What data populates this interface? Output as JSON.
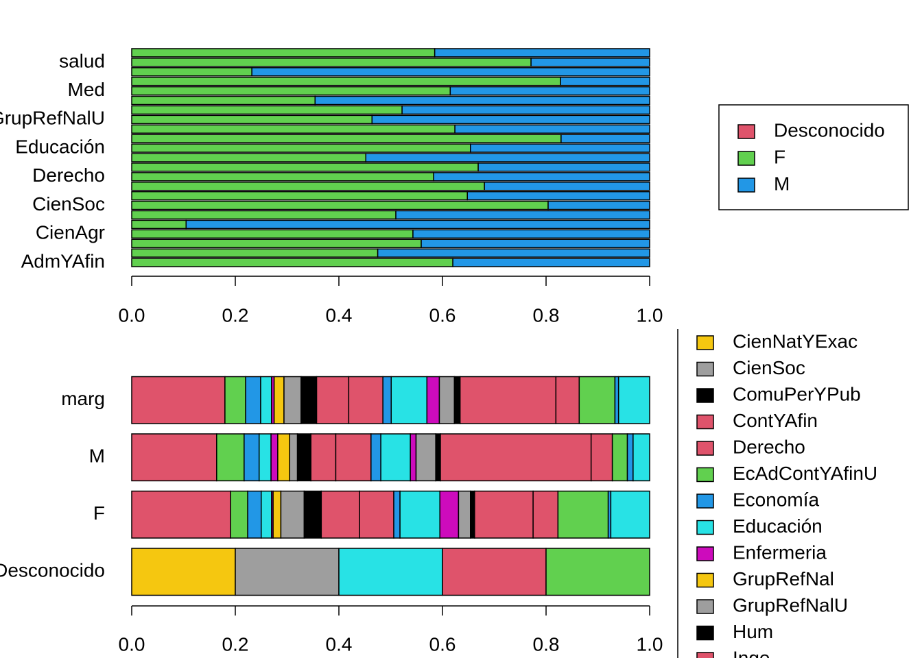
{
  "chart_data": [
    {
      "type": "bar",
      "orientation": "horizontal",
      "stacked": true,
      "legend": "right",
      "categories": [
        "AdmYAfin",
        null,
        null,
        "CienAgr",
        null,
        null,
        "CienSoc",
        null,
        null,
        "Derecho",
        null,
        null,
        "Educación",
        null,
        null,
        "GrupRefNalU",
        null,
        null,
        "Med",
        null,
        null,
        "salud",
        null
      ],
      "series": [
        {
          "name": "Desconocido",
          "color": "#DF536B",
          "values": [
            0,
            0,
            0,
            0,
            0,
            0,
            0,
            0,
            0,
            0,
            0,
            0,
            0,
            0,
            0,
            0,
            0,
            0,
            0,
            0,
            0,
            0,
            0
          ]
        },
        {
          "name": "F",
          "color": "#61D04F",
          "values": [
            0.62,
            0.475,
            0.559,
            0.543,
            0.105,
            0.51,
            0.804,
            0.648,
            0.681,
            0.583,
            0.669,
            0.452,
            0.654,
            0.829,
            0.624,
            0.464,
            0.522,
            0.354,
            0.615,
            0.828,
            0.232,
            0.771,
            0.585
          ]
        },
        {
          "name": "M",
          "color": "#2297E6",
          "values": [
            0.38,
            0.525,
            0.441,
            0.457,
            0.895,
            0.49,
            0.196,
            0.352,
            0.319,
            0.417,
            0.331,
            0.548,
            0.346,
            0.171,
            0.376,
            0.536,
            0.478,
            0.646,
            0.385,
            0.172,
            0.768,
            0.229,
            0.415
          ]
        }
      ],
      "xlim": [
        0,
        1
      ],
      "xticks": [
        {
          "value": 0,
          "label": "0.0"
        },
        0.2,
        0.4,
        0.6,
        0.8,
        {
          "value": 1,
          "label": "1.0"
        }
      ]
    },
    {
      "type": "bar",
      "orientation": "horizontal",
      "stacked": true,
      "legend": "right",
      "categories": [
        "Desconocido",
        "F",
        "M",
        "marg"
      ],
      "series": [
        {
          "name": null,
          "color": "#DF536B",
          "values": [
            0,
            0.191,
            0.164,
            0.18
          ]
        },
        {
          "name": null,
          "color": "#61D04F",
          "values": [
            0,
            0.033,
            0.053,
            0.04
          ]
        },
        {
          "name": null,
          "color": "#2297E6",
          "values": [
            0,
            0.026,
            0.029,
            0.029
          ]
        },
        {
          "name": null,
          "color": "#28E2E5",
          "values": [
            0,
            0.02,
            0.023,
            0.021
          ]
        },
        {
          "name": null,
          "color": "#CD0BBC",
          "values": [
            0,
            0.003,
            0.013,
            0.005
          ]
        },
        {
          "name": "CienNatYExac",
          "color": "#F5C710",
          "values": [
            0.2,
            0.015,
            0.023,
            0.019
          ]
        },
        {
          "name": "CienSoc",
          "color": "#9E9E9E",
          "values": [
            0.2,
            0.045,
            0.015,
            0.033
          ]
        },
        {
          "name": "ComuPerYPub",
          "color": "#000000",
          "values": [
            0,
            0.033,
            0.026,
            0.03
          ]
        },
        {
          "name": "ContYAfin",
          "color": "#DF536B",
          "values": [
            0,
            0.074,
            0.048,
            0.062
          ]
        },
        {
          "name": "Derecho",
          "color": "#DF536B",
          "values": [
            0,
            0.066,
            0.068,
            0.066
          ]
        },
        {
          "name": "EcAdContYAfinU",
          "color": "#61D04F",
          "values": [
            0,
            0,
            0,
            0
          ]
        },
        {
          "name": "Economía",
          "color": "#2297E6",
          "values": [
            0,
            0.012,
            0.019,
            0.016
          ]
        },
        {
          "name": "Educación",
          "color": "#28E2E5",
          "values": [
            0.2,
            0.077,
            0.057,
            0.069
          ]
        },
        {
          "name": "Enfermeria",
          "color": "#CD0BBC",
          "values": [
            0,
            0.036,
            0.011,
            0.024
          ]
        },
        {
          "name": "GrupRefNal",
          "color": "#F5C710",
          "values": [
            0,
            0,
            0,
            0
          ]
        },
        {
          "name": "GrupRefNalU",
          "color": "#9E9E9E",
          "values": [
            0,
            0.023,
            0.038,
            0.029
          ]
        },
        {
          "name": "Hum",
          "color": "#000000",
          "values": [
            0,
            0.008,
            0.009,
            0.011
          ]
        },
        {
          "name": "Inge",
          "color": "#DF536B",
          "values": [
            0.2,
            0.113,
            0.291,
            0.185
          ]
        },
        {
          "name": null,
          "color": "#DF536B",
          "values": [
            0,
            0.048,
            0.041,
            0.045
          ]
        },
        {
          "name": null,
          "color": "#61D04F",
          "values": [
            0.2,
            0.097,
            0.029,
            0.069
          ]
        },
        {
          "name": null,
          "color": "#2297E6",
          "values": [
            0,
            0.005,
            0.011,
            0.007
          ]
        },
        {
          "name": null,
          "color": "#28E2E5",
          "values": [
            0,
            0.075,
            0.032,
            0.06
          ]
        },
        {
          "name": null,
          "color": "#CD0BBC",
          "values": [
            0,
            0,
            0,
            0
          ]
        }
      ],
      "xlim": [
        0,
        1
      ],
      "xticks": [
        {
          "value": 0,
          "label": "0.0"
        },
        0.2,
        0.4,
        0.6,
        0.8,
        {
          "value": 1,
          "label": "1.0"
        }
      ]
    }
  ]
}
